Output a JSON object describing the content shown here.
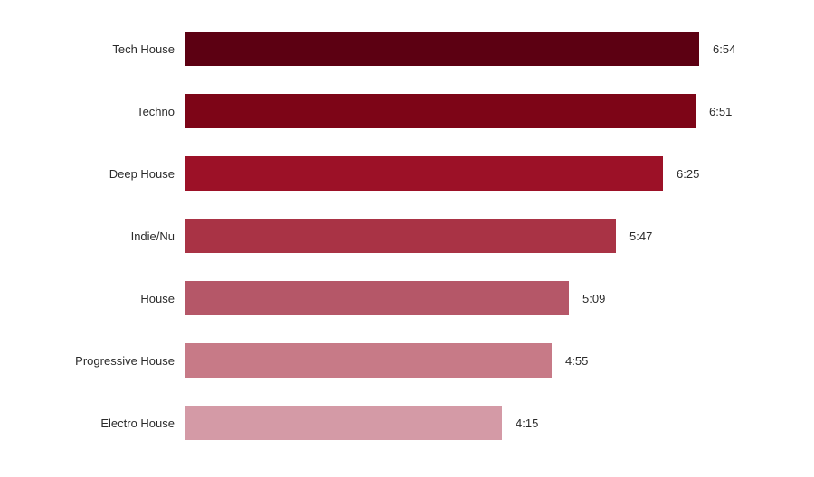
{
  "chart_data": {
    "type": "bar",
    "orientation": "horizontal",
    "title": "",
    "xlabel": "",
    "ylabel": "",
    "grid": false,
    "legend": false,
    "background_color": "#ffffff",
    "label_color": "#2b2b2b",
    "categories": [
      "Tech House",
      "Techno",
      "Deep House",
      "Indie/Nu",
      "House",
      "Progressive House",
      "Electro House"
    ],
    "values": [
      "6:54",
      "6:51",
      "6:25",
      "5:47",
      "5:09",
      "4:55",
      "4:15"
    ],
    "values_seconds": [
      414,
      411,
      385,
      347,
      309,
      295,
      255
    ],
    "x_range_seconds": [
      0,
      414
    ],
    "bar_colors": [
      "#5c0012",
      "#7d0517",
      "#9c1127",
      "#a93345",
      "#b55768",
      "#c77a87",
      "#d49aa6"
    ]
  }
}
